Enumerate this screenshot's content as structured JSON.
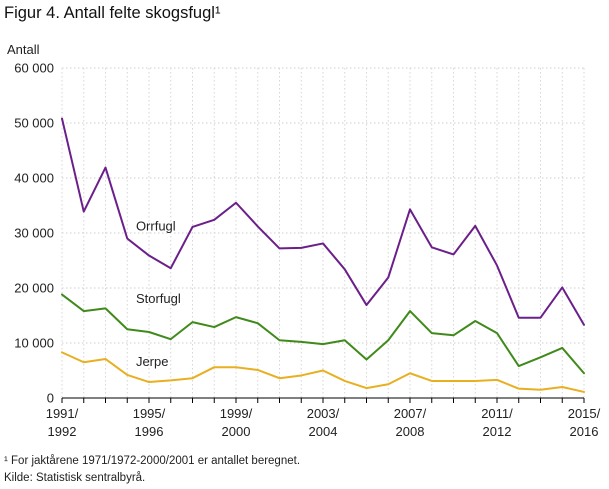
{
  "title": "Figur 4. Antall felte skogsfugl¹",
  "footnote": "¹ For jaktårene 1971/1972-2000/2001 er antallet beregnet.",
  "source": "Kilde: Statistisk sentralbyrå.",
  "chart_data": {
    "type": "line",
    "title": "Figur 4. Antall felte skogsfugl¹",
    "ylabel": "Antall",
    "xlabel": "",
    "ylim": [
      0,
      60000
    ],
    "yticks": [
      0,
      10000,
      20000,
      30000,
      40000,
      50000,
      60000
    ],
    "ytick_labels": [
      "0",
      "10 000",
      "20 000",
      "30 000",
      "40 000",
      "50 000",
      "60 000"
    ],
    "x": [
      "1991/1992",
      "1992/1993",
      "1993/1994",
      "1994/1995",
      "1995/1996",
      "1996/1997",
      "1997/1998",
      "1998/1999",
      "1999/2000",
      "2000/2001",
      "2001/2002",
      "2002/2003",
      "2003/2004",
      "2004/2005",
      "2005/2006",
      "2006/2007",
      "2007/2008",
      "2008/2009",
      "2009/2010",
      "2010/2011",
      "2011/2012",
      "2012/2013",
      "2013/2014",
      "2014/2015",
      "2015/2016"
    ],
    "xtick_labels": [
      {
        "index": 0,
        "line1": "1991/",
        "line2": "1992"
      },
      {
        "index": 4,
        "line1": "1995/",
        "line2": "1996"
      },
      {
        "index": 8,
        "line1": "1999/",
        "line2": "2000"
      },
      {
        "index": 12,
        "line1": "2003/",
        "line2": "2004"
      },
      {
        "index": 16,
        "line1": "2007/",
        "line2": "2008"
      },
      {
        "index": 20,
        "line1": "2011/",
        "line2": "2012"
      },
      {
        "index": 24,
        "line1": "2015/",
        "line2": "2016"
      }
    ],
    "grid": true,
    "series": [
      {
        "name": "Orrfugl",
        "color": "#6b1f8a",
        "label_at_index": 3.4,
        "label_value": 30500,
        "values": [
          50800,
          33900,
          41900,
          29000,
          25900,
          23600,
          31100,
          32400,
          35500,
          31200,
          27200,
          27300,
          28100,
          23400,
          16900,
          21900,
          34300,
          27400,
          26100,
          31300,
          24100,
          14600,
          14600,
          20100,
          13300
        ]
      },
      {
        "name": "Storfugl",
        "color": "#3f8a1a",
        "label_at_index": 3.4,
        "label_value": 17300,
        "values": [
          18800,
          15800,
          16300,
          12500,
          12000,
          10700,
          13800,
          12900,
          14700,
          13600,
          10500,
          10200,
          9800,
          10500,
          7000,
          10500,
          15800,
          11800,
          11400,
          14000,
          11800,
          5800,
          7400,
          9100,
          4500
        ]
      },
      {
        "name": "Jerpe",
        "color": "#e8b020",
        "label_at_index": 3.4,
        "label_value": 5800,
        "values": [
          8300,
          6500,
          7100,
          4200,
          2900,
          3200,
          3600,
          5600,
          5600,
          5100,
          3600,
          4100,
          5000,
          3100,
          1800,
          2500,
          4500,
          3100,
          3100,
          3100,
          3300,
          1700,
          1500,
          2000,
          1100
        ]
      }
    ]
  }
}
